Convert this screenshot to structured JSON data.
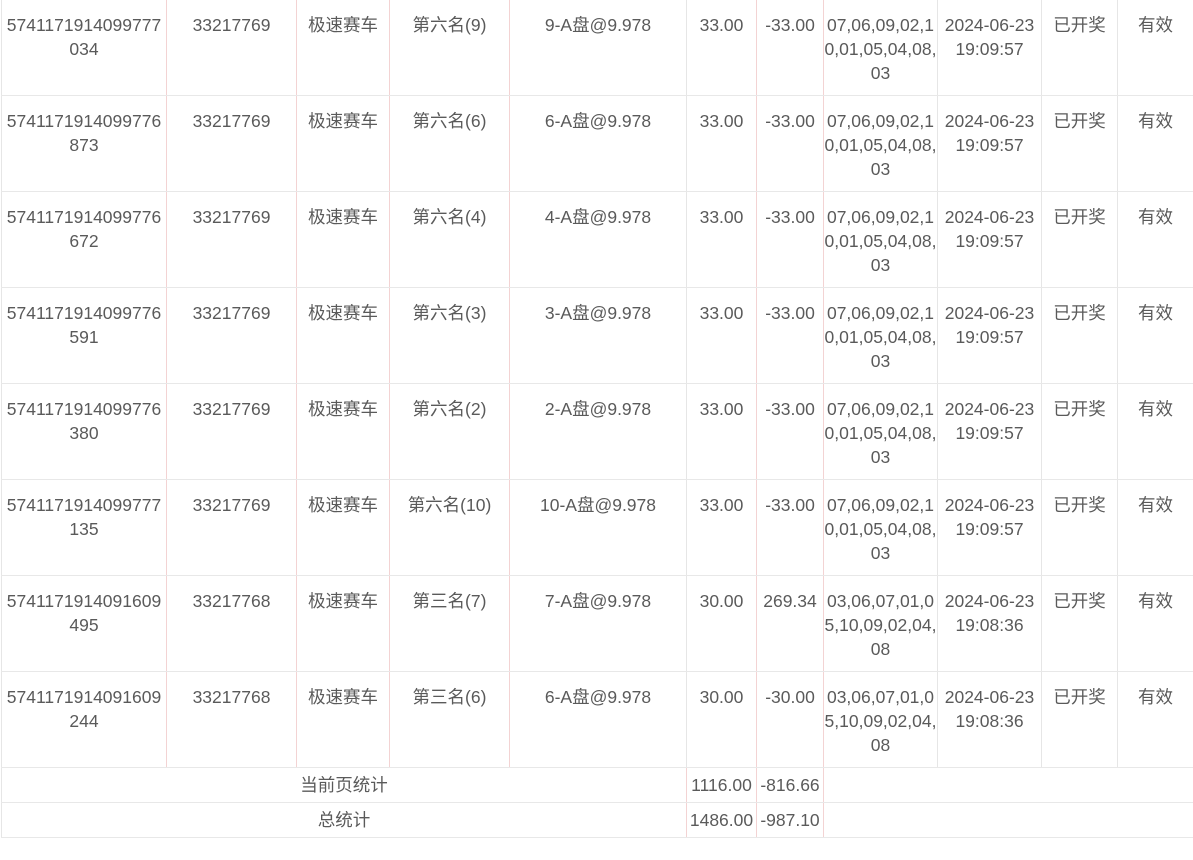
{
  "rows": [
    {
      "order_no": "5741171914099777034",
      "issue": "33217769",
      "game": "极速赛车",
      "play": "第六名(9)",
      "content": "9-A盘@9.978",
      "amount": "33.00",
      "profit": "-33.00",
      "result": "07,06,09,02,10,01,05,04,08,03",
      "time": "2024-06-23 19:09:57",
      "status": "已开奖",
      "valid": "有效"
    },
    {
      "order_no": "5741171914099776873",
      "issue": "33217769",
      "game": "极速赛车",
      "play": "第六名(6)",
      "content": "6-A盘@9.978",
      "amount": "33.00",
      "profit": "-33.00",
      "result": "07,06,09,02,10,01,05,04,08,03",
      "time": "2024-06-23 19:09:57",
      "status": "已开奖",
      "valid": "有效"
    },
    {
      "order_no": "5741171914099776672",
      "issue": "33217769",
      "game": "极速赛车",
      "play": "第六名(4)",
      "content": "4-A盘@9.978",
      "amount": "33.00",
      "profit": "-33.00",
      "result": "07,06,09,02,10,01,05,04,08,03",
      "time": "2024-06-23 19:09:57",
      "status": "已开奖",
      "valid": "有效"
    },
    {
      "order_no": "5741171914099776591",
      "issue": "33217769",
      "game": "极速赛车",
      "play": "第六名(3)",
      "content": "3-A盘@9.978",
      "amount": "33.00",
      "profit": "-33.00",
      "result": "07,06,09,02,10,01,05,04,08,03",
      "time": "2024-06-23 19:09:57",
      "status": "已开奖",
      "valid": "有效"
    },
    {
      "order_no": "5741171914099776380",
      "issue": "33217769",
      "game": "极速赛车",
      "play": "第六名(2)",
      "content": "2-A盘@9.978",
      "amount": "33.00",
      "profit": "-33.00",
      "result": "07,06,09,02,10,01,05,04,08,03",
      "time": "2024-06-23 19:09:57",
      "status": "已开奖",
      "valid": "有效"
    },
    {
      "order_no": "5741171914099777135",
      "issue": "33217769",
      "game": "极速赛车",
      "play": "第六名(10)",
      "content": "10-A盘@9.978",
      "amount": "33.00",
      "profit": "-33.00",
      "result": "07,06,09,02,10,01,05,04,08,03",
      "time": "2024-06-23 19:09:57",
      "status": "已开奖",
      "valid": "有效"
    },
    {
      "order_no": "5741171914091609495",
      "issue": "33217768",
      "game": "极速赛车",
      "play": "第三名(7)",
      "content": "7-A盘@9.978",
      "amount": "30.00",
      "profit": "269.34",
      "result": "03,06,07,01,05,10,09,02,04,08",
      "time": "2024-06-23 19:08:36",
      "status": "已开奖",
      "valid": "有效"
    },
    {
      "order_no": "5741171914091609244",
      "issue": "33217768",
      "game": "极速赛车",
      "play": "第三名(6)",
      "content": "6-A盘@9.978",
      "amount": "30.00",
      "profit": "-30.00",
      "result": "03,06,07,01,05,10,09,02,04,08",
      "time": "2024-06-23 19:08:36",
      "status": "已开奖",
      "valid": "有效"
    }
  ],
  "summary": {
    "page_label": "当前页统计",
    "page_amount": "1116.00",
    "page_profit": "-816.66",
    "total_label": "总统计",
    "total_amount": "1486.00",
    "total_profit": "-987.10"
  }
}
